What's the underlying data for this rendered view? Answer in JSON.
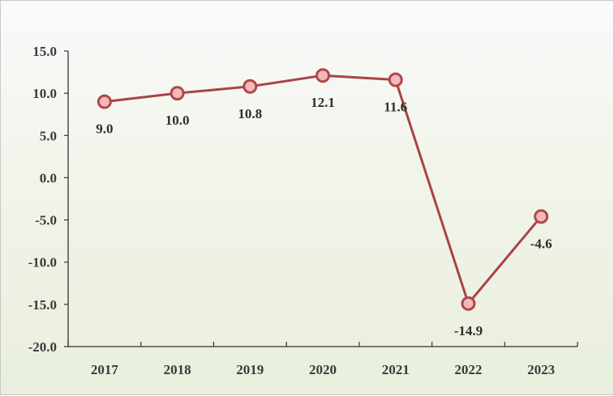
{
  "chart_data": {
    "type": "line",
    "categories": [
      "2017",
      "2018",
      "2019",
      "2020",
      "2021",
      "2022",
      "2023"
    ],
    "series": [
      {
        "values": [
          9.0,
          10.0,
          10.8,
          12.1,
          11.6,
          -14.9,
          -4.6
        ]
      }
    ],
    "data_labels": [
      "9.0",
      "10.0",
      "10.8",
      "12.1",
      "11.6",
      "-14.9",
      "-4.6"
    ],
    "y_ticks": [
      "15.0",
      "10.0",
      "5.0",
      "0.0",
      "-5.0",
      "-10.0",
      "-15.0",
      "-20.0"
    ],
    "ylim": [
      -20,
      15
    ],
    "y_step": 5,
    "grid": false,
    "legend": "none",
    "colors": {
      "line": "#a84444",
      "marker_fill": "#f2b8bc",
      "marker_stroke": "#b04848",
      "axis": "#333333"
    }
  }
}
